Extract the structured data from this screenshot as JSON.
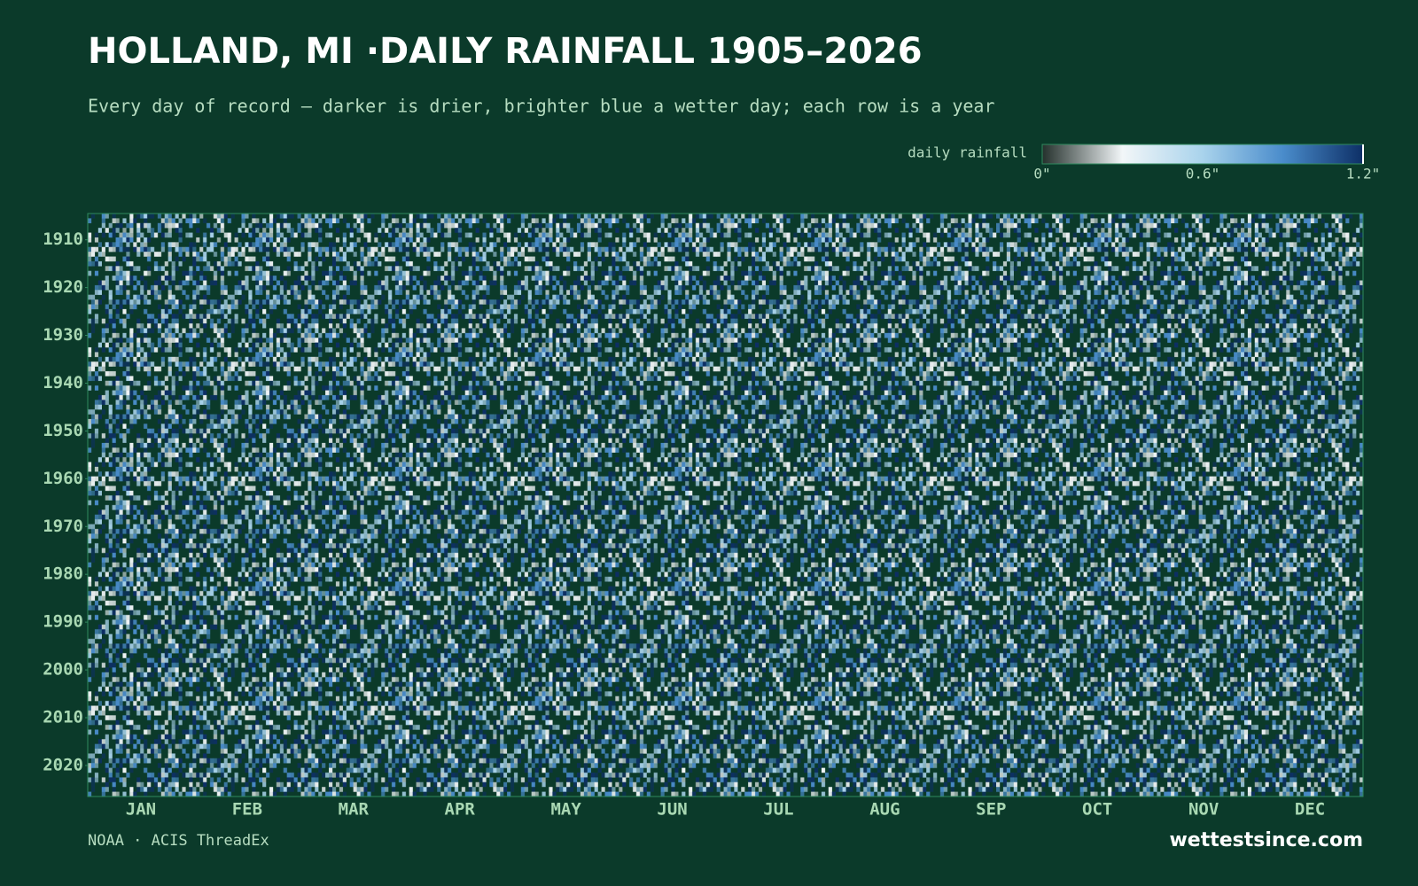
{
  "chart_data": {
    "type": "heatmap",
    "title": "HOLLAND, MI ·DAILY RAINFALL 1905–2026",
    "subtitle": "Every day of record — darker is drier, brighter blue a wetter day; each row is a year",
    "colorbar": {
      "label": "daily rainfall",
      "lim": [
        0,
        1.2
      ],
      "ticks": [
        {
          "value": 0,
          "label": "0\""
        },
        {
          "value": 0.6,
          "label": "0.6\""
        },
        {
          "value": 1.2,
          "label": "1.2\""
        }
      ],
      "colors": [
        "#24302c",
        "#f2f6f8",
        "#a9d3ec",
        "#4a8ccb",
        "#0d2f66"
      ]
    },
    "categories": [
      "JAN",
      "FEB",
      "MAR",
      "APR",
      "MAY",
      "JUN",
      "JUL",
      "AUG",
      "SEP",
      "OCT",
      "NOV",
      "DEC"
    ],
    "ylim": [
      1905,
      2026
    ],
    "yticks": [
      1910,
      1920,
      1930,
      1940,
      1950,
      1960,
      1970,
      1980,
      1990,
      2000,
      2010,
      2020
    ],
    "source": "NOAA · ACIS ThreadEx",
    "brand": "wettestsince.com"
  }
}
